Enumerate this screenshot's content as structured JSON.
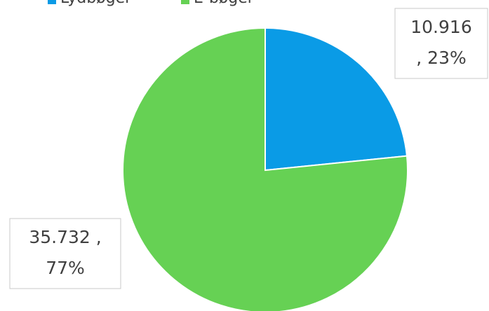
{
  "chart_data": {
    "type": "pie",
    "categories": [
      "Lydbøger",
      "E-bøger"
    ],
    "values": [
      10916,
      35732
    ],
    "value_labels": [
      [
        "10.916",
        ", 23%"
      ],
      [
        "35.732 ,",
        "77%"
      ]
    ],
    "colors": [
      "#0a9be6",
      "#66d154"
    ],
    "legend": "top"
  }
}
